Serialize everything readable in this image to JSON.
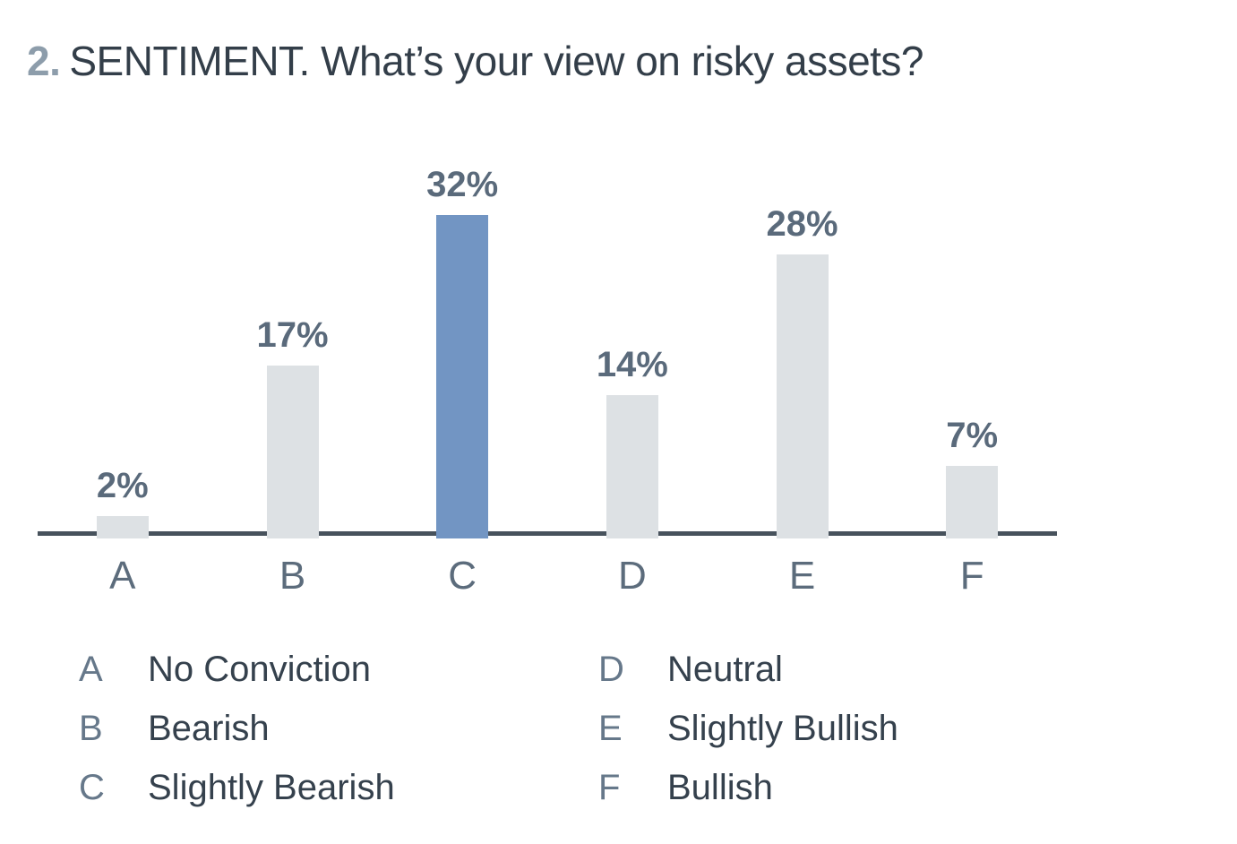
{
  "title": {
    "number": "2.",
    "text": "SENTIMENT. What’s your view on risky assets?"
  },
  "chart_data": {
    "type": "bar",
    "title": "2. SENTIMENT. What’s your view on risky assets?",
    "categories": [
      "A",
      "B",
      "C",
      "D",
      "E",
      "F"
    ],
    "values": [
      2,
      17,
      32,
      14,
      28,
      7
    ],
    "value_labels": [
      "2%",
      "17%",
      "32%",
      "14%",
      "28%",
      "7%"
    ],
    "highlighted_category": "C",
    "xlabel": "",
    "ylabel": "",
    "ylim": [
      0,
      35
    ],
    "grid": false,
    "legend_position": "below-chart",
    "colors": {
      "bar_default": "#dde1e4",
      "bar_highlight": "#7295c3",
      "axis_line": "#47525c",
      "value_label_text": "#5a6a7b",
      "category_label_text": "#5c6c7c",
      "title_number": "#8d9dab",
      "title_text": "#333e49"
    }
  },
  "legend": {
    "columns": [
      {
        "items": [
          {
            "key": "A",
            "label": "No Conviction"
          },
          {
            "key": "B",
            "label": "Bearish"
          },
          {
            "key": "C",
            "label": "Slightly Bearish"
          }
        ]
      },
      {
        "items": [
          {
            "key": "D",
            "label": "Neutral"
          },
          {
            "key": "E",
            "label": "Slightly Bullish"
          },
          {
            "key": "F",
            "label": "Bullish"
          }
        ]
      }
    ]
  }
}
